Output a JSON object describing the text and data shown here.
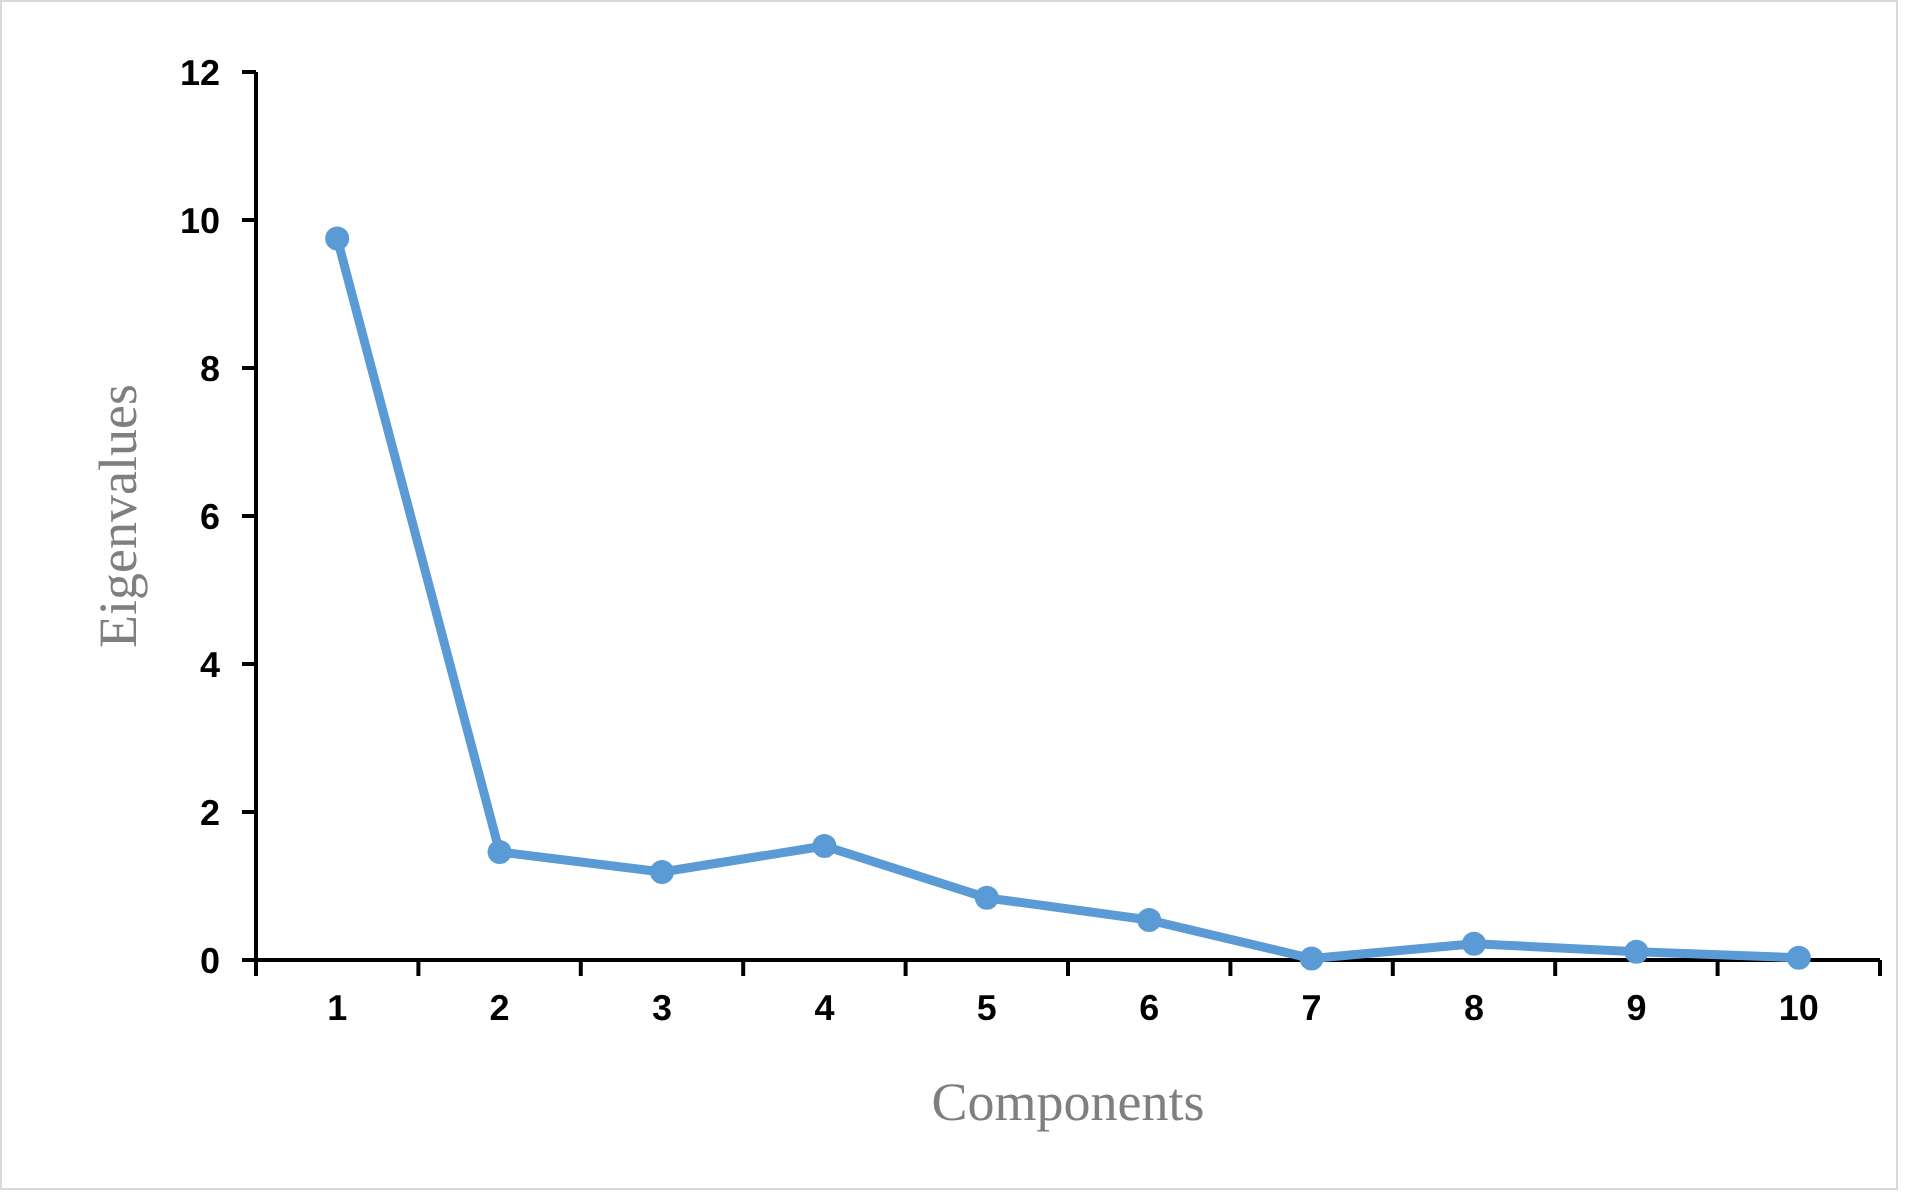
{
  "chart_data": {
    "type": "line",
    "xlabel": "Components",
    "ylabel": "Eigenvalues",
    "categories": [
      "1",
      "2",
      "3",
      "4",
      "5",
      "6",
      "7",
      "8",
      "9",
      "10"
    ],
    "series": [
      {
        "color": "#5b9bd5",
        "values": [
          9.75,
          1.46,
          1.19,
          1.54,
          0.84,
          0.54,
          0.02,
          0.22,
          0.11,
          0.03
        ]
      }
    ],
    "ylim": [
      0,
      12
    ],
    "yticks": [
      0,
      2,
      4,
      6,
      8,
      10,
      12
    ],
    "grid": false,
    "marker": "circle",
    "line_style": "solid"
  }
}
